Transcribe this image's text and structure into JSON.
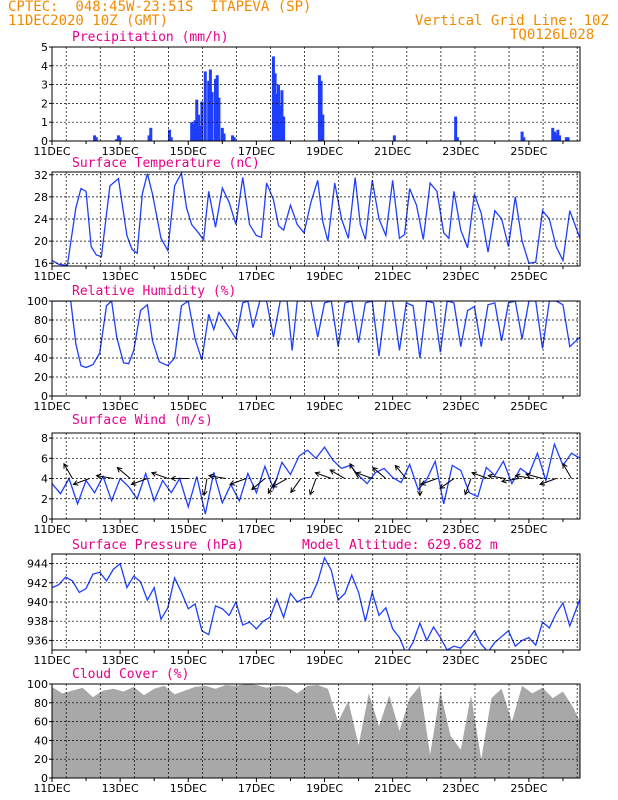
{
  "header": {
    "line1": "CPTEC:  048:45W-23:51S  ITAPEVA (SP)",
    "line2": "11DEC2020 10Z (GMT)",
    "grid_note": "Vertical Grid Line: 10Z",
    "code": "TQ0126L028"
  },
  "colors": {
    "series": "#1f3fff",
    "cloud": "#a8a8a8",
    "title": "#e8008a",
    "header": "#f28a00",
    "arrow": "#000000"
  },
  "chart_data": [
    {
      "type": "bar",
      "title": "Precipitation (mm/h)",
      "x_tick_labels": [
        "11DEC",
        "13DEC",
        "15DEC",
        "17DEC",
        "19DEC",
        "21DEC",
        "23DEC",
        "25DEC"
      ],
      "x_unit": "days since 11DEC 00Z",
      "xlim": [
        0,
        15.5
      ],
      "ylim": [
        0,
        5
      ],
      "y_ticks": [
        0,
        1,
        2,
        3,
        4,
        5
      ],
      "series": [
        {
          "x": [
            1.25,
            1.3,
            1.9,
            1.95,
            2.0,
            2.85,
            2.9,
            3.45,
            3.5,
            4.1,
            4.15,
            4.2,
            4.25,
            4.3,
            4.35,
            4.4,
            4.5,
            4.6,
            4.65,
            4.7,
            4.8,
            4.85,
            4.9,
            5.0,
            5.05,
            5.3,
            5.35,
            6.5,
            6.55,
            6.6,
            6.65,
            6.7,
            6.75,
            6.8,
            7.85,
            7.9,
            7.95,
            10.05,
            11.85,
            11.9,
            13.8,
            13.85,
            14.7,
            14.75,
            14.8,
            14.85,
            14.9,
            15.1,
            15.15
          ],
          "values": [
            0.3,
            0.2,
            0.1,
            0.3,
            0.2,
            0.3,
            0.7,
            0.6,
            0.2,
            1.0,
            0.9,
            1.1,
            2.2,
            1.4,
            0.8,
            2.1,
            3.7,
            3.2,
            3.8,
            2.6,
            3.3,
            3.5,
            2.3,
            0.7,
            0.4,
            0.3,
            0.2,
            4.5,
            3.6,
            2.5,
            3.0,
            1.9,
            2.7,
            1.3,
            3.5,
            3.2,
            1.4,
            0.3,
            1.3,
            0.2,
            0.5,
            0.2,
            0.7,
            0.5,
            0.4,
            0.6,
            0.3,
            0.2,
            0.2
          ]
        }
      ]
    },
    {
      "type": "line",
      "title": "Surface Temperature (nC)",
      "x_tick_labels": [
        "11DEC",
        "13DEC",
        "15DEC",
        "17DEC",
        "19DEC",
        "21DEC",
        "23DEC",
        "25DEC"
      ],
      "xlim": [
        0,
        15.5
      ],
      "ylim": [
        15.5,
        32.5
      ],
      "y_ticks": [
        16,
        20,
        24,
        28,
        32
      ],
      "series": [
        {
          "x": [
            0,
            0.2,
            0.45,
            0.7,
            0.85,
            1.0,
            1.15,
            1.3,
            1.45,
            1.7,
            1.95,
            2.2,
            2.35,
            2.5,
            2.65,
            2.8,
            2.95,
            3.2,
            3.4,
            3.6,
            3.8,
            3.95,
            4.1,
            4.3,
            4.45,
            4.6,
            4.8,
            5.0,
            5.2,
            5.4,
            5.6,
            5.8,
            6.0,
            6.15,
            6.3,
            6.5,
            6.65,
            6.8,
            7.0,
            7.2,
            7.4,
            7.6,
            7.8,
            7.95,
            8.1,
            8.3,
            8.5,
            8.7,
            8.9,
            9.05,
            9.2,
            9.4,
            9.6,
            9.8,
            10.0,
            10.2,
            10.35,
            10.5,
            10.7,
            10.9,
            11.1,
            11.3,
            11.5,
            11.65,
            11.8,
            12.0,
            12.2,
            12.4,
            12.6,
            12.8,
            13.0,
            13.2,
            13.4,
            13.6,
            13.8,
            14.0,
            14.2,
            14.4,
            14.6,
            14.8,
            15.0,
            15.2,
            15.5
          ],
          "values": [
            16.5,
            15.8,
            15.6,
            26.0,
            29.5,
            29.0,
            19.0,
            17.5,
            17.2,
            30.0,
            31.3,
            21.0,
            18.5,
            17.8,
            28.5,
            32.2,
            28.5,
            20.5,
            18.3,
            30.0,
            32.3,
            26.0,
            23.0,
            21.5,
            20.2,
            29.0,
            22.5,
            29.6,
            27.0,
            23.0,
            31.5,
            23.0,
            21.0,
            20.7,
            30.5,
            27.5,
            22.8,
            22.0,
            26.5,
            23.0,
            21.5,
            27.0,
            31.0,
            23.5,
            20.0,
            30.5,
            24.0,
            20.5,
            31.5,
            23.0,
            20.3,
            31.0,
            24.0,
            21.0,
            31.0,
            20.5,
            21.2,
            29.5,
            26.5,
            20.3,
            30.5,
            29.0,
            21.5,
            20.5,
            29.0,
            22.0,
            18.8,
            28.5,
            25.0,
            18.0,
            25.5,
            24.0,
            19.0,
            28.0,
            20.0,
            16.0,
            16.2,
            25.5,
            24.0,
            19.0,
            16.5,
            25.5,
            20.5
          ]
        }
      ]
    },
    {
      "type": "line",
      "title": "Relative Humidity (%)",
      "x_tick_labels": [
        "11DEC",
        "13DEC",
        "15DEC",
        "17DEC",
        "19DEC",
        "21DEC",
        "23DEC",
        "25DEC"
      ],
      "xlim": [
        0,
        15.5
      ],
      "ylim": [
        0,
        100
      ],
      "y_ticks": [
        0,
        20,
        40,
        60,
        80,
        100
      ],
      "series": [
        {
          "x": [
            0,
            0.2,
            0.4,
            0.55,
            0.7,
            0.85,
            1.0,
            1.2,
            1.4,
            1.6,
            1.75,
            1.9,
            2.1,
            2.25,
            2.4,
            2.6,
            2.8,
            2.95,
            3.15,
            3.4,
            3.6,
            3.8,
            4.0,
            4.2,
            4.4,
            4.6,
            4.75,
            4.9,
            5.05,
            5.2,
            5.4,
            5.6,
            5.75,
            5.9,
            6.1,
            6.3,
            6.5,
            6.7,
            6.9,
            7.05,
            7.2,
            7.4,
            7.6,
            7.8,
            8.0,
            8.2,
            8.4,
            8.6,
            8.8,
            9.0,
            9.2,
            9.4,
            9.6,
            9.8,
            10.0,
            10.2,
            10.4,
            10.6,
            10.8,
            11.0,
            11.2,
            11.4,
            11.6,
            11.8,
            12.0,
            12.2,
            12.4,
            12.6,
            12.8,
            13.0,
            13.2,
            13.4,
            13.6,
            13.8,
            14.0,
            14.2,
            14.4,
            14.6,
            14.8,
            15.0,
            15.2,
            15.5
          ],
          "values": [
            100,
            100,
            100,
            100,
            55,
            32,
            30,
            33,
            45,
            95,
            100,
            62,
            35,
            34,
            48,
            90,
            96,
            58,
            36,
            32,
            40,
            95,
            100,
            60,
            38,
            86,
            70,
            88,
            80,
            72,
            60,
            98,
            100,
            72,
            100,
            100,
            62,
            100,
            100,
            48,
            100,
            100,
            100,
            62,
            98,
            100,
            52,
            98,
            100,
            56,
            98,
            100,
            42,
            100,
            100,
            48,
            98,
            95,
            40,
            100,
            98,
            46,
            100,
            98,
            52,
            90,
            94,
            52,
            96,
            98,
            58,
            98,
            100,
            60,
            100,
            100,
            50,
            100,
            100,
            96,
            52,
            62
          ]
        }
      ]
    },
    {
      "type": "line",
      "title": "Surface Wind (m/s)",
      "x_tick_labels": [
        "11DEC",
        "13DEC",
        "15DEC",
        "17DEC",
        "19DEC",
        "21DEC",
        "23DEC",
        "25DEC"
      ],
      "xlim": [
        0,
        15.5
      ],
      "ylim": [
        0,
        8.5
      ],
      "y_ticks": [
        0,
        2,
        4,
        6,
        8
      ],
      "series": [
        {
          "x": [
            0,
            0.25,
            0.5,
            0.75,
            1.0,
            1.25,
            1.5,
            1.75,
            2.0,
            2.25,
            2.5,
            2.75,
            3.0,
            3.25,
            3.5,
            3.75,
            4.0,
            4.25,
            4.5,
            4.75,
            5.0,
            5.25,
            5.5,
            5.75,
            6.0,
            6.25,
            6.5,
            6.75,
            7.0,
            7.25,
            7.5,
            7.75,
            8.0,
            8.25,
            8.5,
            8.75,
            9.0,
            9.25,
            9.5,
            9.75,
            10.0,
            10.25,
            10.5,
            10.75,
            11.0,
            11.25,
            11.5,
            11.75,
            12.0,
            12.25,
            12.5,
            12.75,
            13.0,
            13.25,
            13.5,
            13.75,
            14.0,
            14.25,
            14.5,
            14.75,
            15.0,
            15.25,
            15.5
          ],
          "values": [
            3.5,
            2.5,
            4.0,
            1.5,
            3.8,
            2.6,
            4.2,
            1.8,
            4.0,
            3.2,
            2.0,
            4.5,
            1.8,
            3.8,
            2.6,
            4.0,
            1.2,
            4.2,
            0.5,
            4.6,
            1.6,
            3.4,
            1.8,
            4.5,
            2.6,
            5.2,
            3.0,
            5.6,
            4.4,
            6.2,
            6.8,
            6.0,
            7.1,
            5.8,
            5.0,
            5.3,
            4.3,
            3.5,
            4.6,
            5.0,
            4.1,
            3.6,
            5.4,
            2.9,
            3.9,
            5.7,
            1.5,
            5.3,
            4.8,
            2.6,
            2.2,
            5.1,
            4.3,
            5.7,
            3.5,
            5.0,
            4.4,
            6.5,
            3.8,
            7.4,
            5.3,
            6.5,
            6.0
          ],
          "arrows_x": [
            0.6,
            1.1,
            1.8,
            2.3,
            2.8,
            3.4,
            4.0,
            4.55,
            5.1,
            5.7,
            6.25,
            6.6,
            6.9,
            7.3,
            7.75,
            8.2,
            8.6,
            9.0,
            9.4,
            9.8,
            10.4,
            10.8,
            11.3,
            11.8,
            12.3,
            12.8,
            13.3,
            13.7,
            14.1,
            14.4,
            14.8,
            15.25
          ],
          "arrows_dir_deg": [
            120,
            200,
            170,
            140,
            200,
            160,
            180,
            260,
            170,
            200,
            220,
            240,
            210,
            235,
            250,
            160,
            150,
            120,
            160,
            140,
            130,
            270,
            200,
            215,
            250,
            160,
            170,
            190,
            170,
            165,
            200,
            120
          ]
        }
      ]
    },
    {
      "type": "line",
      "title": "Surface Pressure (hPa)",
      "annotation": "Model Altitude: 629.682 m",
      "x_tick_labels": [
        "11DEC",
        "13DEC",
        "15DEC",
        "17DEC",
        "19DEC",
        "21DEC",
        "23DEC",
        "25DEC"
      ],
      "xlim": [
        0,
        15.5
      ],
      "ylim": [
        935,
        945
      ],
      "y_ticks": [
        936,
        938,
        940,
        942,
        944
      ],
      "series": [
        {
          "x": [
            0,
            0.2,
            0.4,
            0.6,
            0.8,
            1.0,
            1.2,
            1.4,
            1.6,
            1.8,
            2.0,
            2.2,
            2.4,
            2.6,
            2.8,
            3.0,
            3.2,
            3.4,
            3.6,
            3.8,
            4.0,
            4.2,
            4.4,
            4.6,
            4.8,
            5.0,
            5.2,
            5.4,
            5.6,
            5.8,
            6.0,
            6.2,
            6.4,
            6.6,
            6.8,
            7.0,
            7.2,
            7.4,
            7.6,
            7.8,
            8.0,
            8.2,
            8.4,
            8.6,
            8.8,
            9.0,
            9.2,
            9.4,
            9.6,
            9.8,
            10.0,
            10.2,
            10.4,
            10.6,
            10.8,
            11.0,
            11.2,
            11.4,
            11.6,
            11.8,
            12.0,
            12.2,
            12.4,
            12.6,
            12.8,
            13.0,
            13.2,
            13.4,
            13.6,
            13.8,
            14.0,
            14.2,
            14.4,
            14.6,
            14.8,
            15.0,
            15.2,
            15.5
          ],
          "values": [
            941.5,
            941.8,
            942.6,
            942.2,
            941.0,
            941.4,
            942.9,
            943.1,
            942.2,
            943.4,
            944.0,
            941.5,
            942.7,
            942.1,
            940.2,
            941.5,
            938.2,
            939.4,
            942.5,
            941.0,
            939.3,
            939.8,
            937.0,
            936.6,
            939.6,
            939.3,
            938.6,
            940.0,
            937.6,
            937.9,
            937.2,
            938.0,
            938.4,
            940.3,
            938.4,
            940.9,
            940.0,
            940.4,
            940.5,
            942.1,
            944.6,
            943.3,
            940.2,
            940.9,
            942.8,
            941.0,
            938.0,
            941.0,
            938.6,
            939.4,
            937.2,
            936.3,
            934.6,
            935.8,
            937.8,
            936.0,
            937.4,
            936.3,
            935.0,
            935.4,
            935.2,
            936.0,
            937.0,
            935.6,
            934.8,
            935.8,
            936.4,
            937.0,
            935.4,
            936.0,
            936.3,
            935.5,
            937.9,
            937.3,
            938.8,
            939.9,
            937.5,
            940.3
          ]
        }
      ]
    },
    {
      "type": "area",
      "title": "Cloud Cover (%)",
      "x_tick_labels": [
        "11DEC",
        "13DEC",
        "15DEC",
        "17DEC",
        "19DEC",
        "21DEC",
        "23DEC",
        "25DEC"
      ],
      "xlim": [
        0,
        15.5
      ],
      "ylim": [
        0,
        100
      ],
      "y_ticks": [
        0,
        20,
        40,
        60,
        80,
        100
      ],
      "series": [
        {
          "x": [
            0,
            0.3,
            0.6,
            0.9,
            1.2,
            1.5,
            1.8,
            2.1,
            2.4,
            2.7,
            3.0,
            3.3,
            3.6,
            3.9,
            4.2,
            4.5,
            4.8,
            5.1,
            5.4,
            5.7,
            6.0,
            6.3,
            6.6,
            6.9,
            7.2,
            7.5,
            7.8,
            8.1,
            8.4,
            8.7,
            9.0,
            9.3,
            9.6,
            9.9,
            10.2,
            10.5,
            10.8,
            11.1,
            11.4,
            11.7,
            12.0,
            12.3,
            12.6,
            12.9,
            13.2,
            13.5,
            13.8,
            14.1,
            14.4,
            14.7,
            15.0,
            15.3,
            15.5
          ],
          "values": [
            97,
            90,
            93,
            96,
            86,
            93,
            95,
            92,
            97,
            88,
            95,
            98,
            89,
            93,
            97,
            98,
            95,
            99,
            98,
            100,
            99,
            96,
            98,
            97,
            90,
            98,
            99,
            95,
            60,
            82,
            35,
            90,
            55,
            88,
            50,
            85,
            98,
            25,
            92,
            45,
            30,
            88,
            20,
            85,
            95,
            60,
            98,
            90,
            96,
            85,
            92,
            75,
            60
          ]
        }
      ]
    }
  ]
}
